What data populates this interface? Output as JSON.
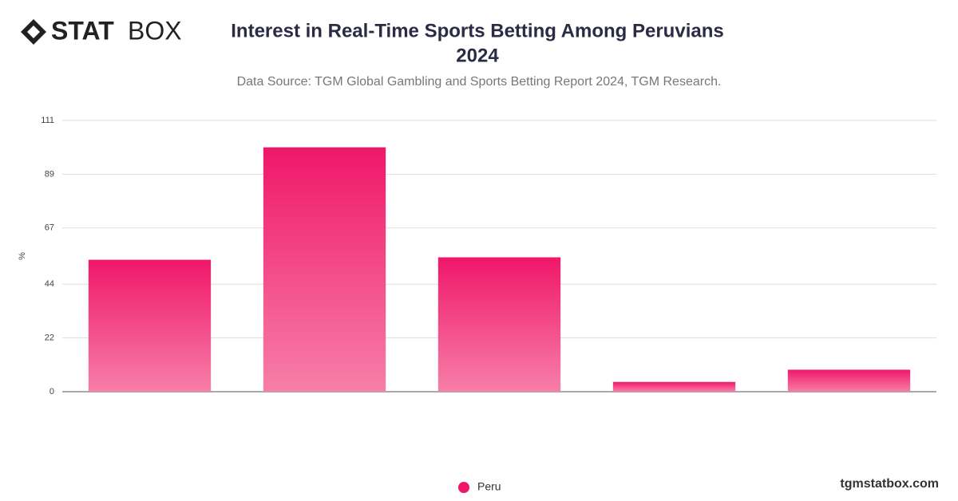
{
  "logo": {
    "bold": "STAT",
    "light": "BOX"
  },
  "footer": "tgmstatbox.com",
  "chart_data": {
    "type": "bar",
    "title_lines": [
      "Interest in Real-Time Sports Betting Among Peruvians",
      "2024"
    ],
    "subtitle": "Data Source: TGM Global Gambling and Sports Betting Report 2024, TGM Research.",
    "y_label": "%",
    "categories": [
      null,
      null,
      null,
      null,
      null
    ],
    "series": [
      {
        "name": "Peru",
        "color": "#f0176a",
        "values": [
          54,
          100,
          55,
          4,
          9
        ]
      }
    ],
    "ylim": [
      0,
      111
    ],
    "yticks": [
      0,
      22,
      44,
      67,
      89,
      111
    ],
    "grid": true
  }
}
